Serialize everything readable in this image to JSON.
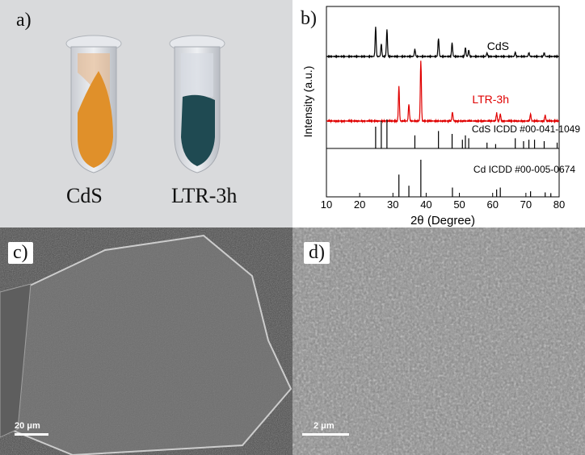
{
  "panels": {
    "a": {
      "label": "a)",
      "samples": [
        {
          "name": "CdS",
          "color": "#e0902a"
        },
        {
          "name": "LTR-3h",
          "color": "#1f4a52"
        }
      ]
    },
    "b": {
      "label": "b)"
    },
    "c": {
      "label": "c)",
      "scale_bar": "20 μm"
    },
    "d": {
      "label": "d)",
      "scale_bar": "2 μm"
    }
  },
  "chart_data": {
    "type": "line",
    "xlabel": "2θ (Degree)",
    "ylabel": "Intensity (a.u.)",
    "xlim": [
      10,
      80
    ],
    "xticks": [
      10,
      20,
      30,
      40,
      50,
      60,
      70,
      80
    ],
    "series": [
      {
        "name": "CdS",
        "color": "#000000",
        "peaks": [
          [
            24.8,
            0.82
          ],
          [
            26.5,
            0.35
          ],
          [
            28.2,
            0.75
          ],
          [
            36.6,
            0.2
          ],
          [
            43.7,
            0.5
          ],
          [
            47.8,
            0.38
          ],
          [
            51.8,
            0.25
          ],
          [
            52.8,
            0.18
          ],
          [
            58.3,
            0.1
          ],
          [
            66.8,
            0.12
          ],
          [
            70.9,
            0.1
          ],
          [
            75.5,
            0.1
          ]
        ]
      },
      {
        "name": "LTR-3h",
        "color": "#e00000",
        "peaks": [
          [
            31.8,
            0.58
          ],
          [
            34.8,
            0.28
          ],
          [
            38.4,
            1.0
          ],
          [
            47.9,
            0.15
          ],
          [
            61.2,
            0.13
          ],
          [
            62.3,
            0.12
          ],
          [
            71.4,
            0.12
          ],
          [
            75.8,
            0.1
          ]
        ]
      }
    ],
    "references": [
      {
        "name": "CdS ICDD #00-041-1049",
        "color": "#000000",
        "lines": [
          [
            24.8,
            0.75
          ],
          [
            26.5,
            0.95
          ],
          [
            28.2,
            1.0
          ],
          [
            36.6,
            0.45
          ],
          [
            43.7,
            0.6
          ],
          [
            47.8,
            0.5
          ],
          [
            50.9,
            0.3
          ],
          [
            51.8,
            0.45
          ],
          [
            52.8,
            0.35
          ],
          [
            58.3,
            0.2
          ],
          [
            60.9,
            0.15
          ],
          [
            66.8,
            0.35
          ],
          [
            69.3,
            0.25
          ],
          [
            70.9,
            0.3
          ],
          [
            72.6,
            0.3
          ],
          [
            75.5,
            0.25
          ],
          [
            79.4,
            0.2
          ]
        ]
      },
      {
        "name": "Cd ICDD #00-005-0674",
        "color": "#000000",
        "lines": [
          [
            31.8,
            0.6
          ],
          [
            34.8,
            0.3
          ],
          [
            38.4,
            1.0
          ],
          [
            47.9,
            0.25
          ],
          [
            61.2,
            0.2
          ],
          [
            62.3,
            0.25
          ],
          [
            71.4,
            0.15
          ],
          [
            75.8,
            0.12
          ],
          [
            77.5,
            0.1
          ]
        ]
      }
    ]
  }
}
